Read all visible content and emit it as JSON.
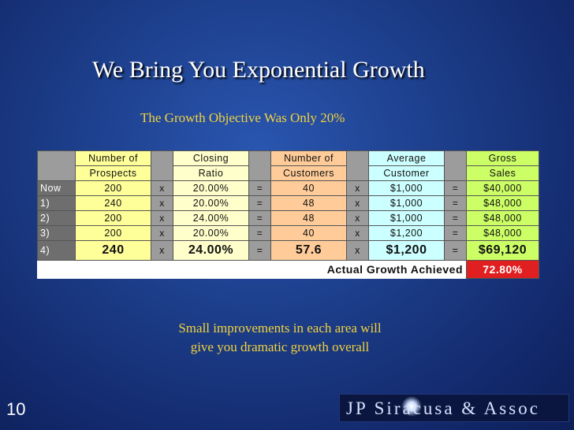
{
  "slide": {
    "title": "We Bring You Exponential Growth",
    "subtitle": "The Growth Objective Was Only 20%",
    "note_line1": "Small improvements in each area will",
    "note_line2": "give you dramatic growth overall",
    "slide_number": "10",
    "logo": "JP Siracusa & Assoc"
  },
  "table": {
    "headers": {
      "prospects": [
        "Number of",
        "Prospects"
      ],
      "closing": [
        "Closing",
        "Ratio"
      ],
      "customers": [
        "Number of",
        "Customers"
      ],
      "average": [
        "Average",
        "Customer"
      ],
      "gross": [
        "Gross",
        "Sales"
      ]
    },
    "ops": {
      "times": "x",
      "equals": "="
    },
    "rows": [
      {
        "label": "Now",
        "prospects": "200",
        "closing": "20.00%",
        "customers": "40",
        "average": "$1,000",
        "gross": "$40,000"
      },
      {
        "label": "1)",
        "prospects": "240",
        "closing": "20.00%",
        "customers": "48",
        "average": "$1,000",
        "gross": "$48,000"
      },
      {
        "label": "2)",
        "prospects": "200",
        "closing": "24.00%",
        "customers": "48",
        "average": "$1,000",
        "gross": "$48,000"
      },
      {
        "label": "3)",
        "prospects": "200",
        "closing": "20.00%",
        "customers": "40",
        "average": "$1,200",
        "gross": "$48,000"
      },
      {
        "label": "4)",
        "prospects": "240",
        "closing": "24.00%",
        "customers": "57.6",
        "average": "$1,200",
        "gross": "$69,120"
      }
    ],
    "actual_label": "Actual Growth Achieved",
    "actual_value": "72.80%"
  }
}
